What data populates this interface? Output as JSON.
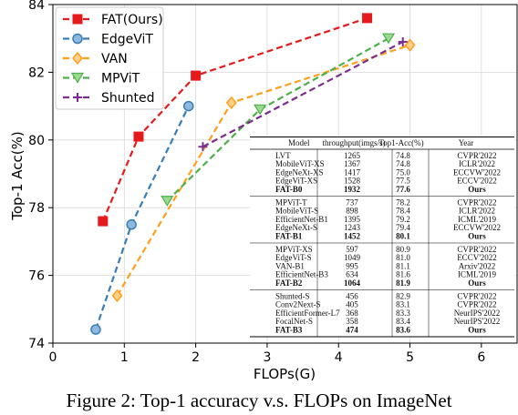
{
  "chart_data": {
    "type": "line",
    "xlabel": "FLOPs(G)",
    "ylabel": "Top-1 Acc(%)",
    "xlim": [
      0,
      6.5
    ],
    "ylim": [
      74,
      84
    ],
    "xticks": [
      "0",
      "1",
      "2",
      "3",
      "4",
      "5",
      "6"
    ],
    "yticks": [
      "74",
      "76",
      "78",
      "80",
      "82",
      "84"
    ],
    "grid": true,
    "legend_position": "top-left",
    "series": [
      {
        "name": "FAT(Ours)",
        "color": "#e41a1c",
        "marker": "square",
        "points": [
          [
            0.7,
            77.6
          ],
          [
            1.2,
            80.1
          ],
          [
            2.0,
            81.9
          ],
          [
            4.4,
            83.6
          ]
        ]
      },
      {
        "name": "EdgeViT",
        "color": "#377eb8",
        "marker": "circle",
        "points": [
          [
            0.6,
            74.4
          ],
          [
            1.1,
            77.5
          ],
          [
            1.9,
            81.0
          ]
        ]
      },
      {
        "name": "VAN",
        "color": "#ff9f1c",
        "marker": "diamond",
        "points": [
          [
            0.9,
            75.4
          ],
          [
            2.5,
            81.1
          ],
          [
            5.0,
            82.8
          ]
        ]
      },
      {
        "name": "MPViT",
        "color": "#4daf4a",
        "marker": "triangle-down",
        "points": [
          [
            1.6,
            78.2
          ],
          [
            2.9,
            80.9
          ],
          [
            4.7,
            83.0
          ]
        ]
      },
      {
        "name": "Shunted",
        "color": "#7b2d8e",
        "marker": "plus",
        "points": [
          [
            2.1,
            79.8
          ],
          [
            4.9,
            82.9
          ]
        ]
      }
    ],
    "table": {
      "headers": [
        "Model",
        "throughput(imgs/s)",
        "Top1-Acc(%)",
        "Year"
      ],
      "groups": [
        [
          [
            "LVT",
            "1265",
            "74.8",
            "CVPR'2022",
            false
          ],
          [
            "MobileViT-XS",
            "1367",
            "74.8",
            "ICLR'2022",
            false
          ],
          [
            "EdgeNeXt-XS",
            "1417",
            "75.0",
            "ECCVW'2022",
            false
          ],
          [
            "EdgeViT-XS",
            "1528",
            "77.5",
            "ECCV'2022",
            false
          ],
          [
            "FAT-B0",
            "1932",
            "77.6",
            "Ours",
            true
          ]
        ],
        [
          [
            "MPViT-T",
            "737",
            "78.2",
            "CVPR'2022",
            false
          ],
          [
            "MobileViT-S",
            "898",
            "78.4",
            "ICLR'2022",
            false
          ],
          [
            "EfficientNet-B1",
            "1395",
            "79.2",
            "ICML'2019",
            false
          ],
          [
            "EdgeNeXt-S",
            "1243",
            "79.4",
            "ECCVW'2022",
            false
          ],
          [
            "FAT-B1",
            "1452",
            "80.1",
            "Ours",
            true
          ]
        ],
        [
          [
            "MPViT-XS",
            "597",
            "80.9",
            "CVPR'2022",
            false
          ],
          [
            "EdgeViT-S",
            "1049",
            "81.0",
            "ECCV'2022",
            false
          ],
          [
            "VAN-B1",
            "995",
            "81.1",
            "Arxiv'2022",
            false
          ],
          [
            "EfficientNet-B3",
            "634",
            "81.6",
            "ICML'2019",
            false
          ],
          [
            "FAT-B2",
            "1064",
            "81.9",
            "Ours",
            true
          ]
        ],
        [
          [
            "Shunted-S",
            "456",
            "82.9",
            "CVPR'2022",
            false
          ],
          [
            "Conv2Next-S",
            "405",
            "83.1",
            "CVPR'2022",
            false
          ],
          [
            "EfficientFormer-L7",
            "368",
            "83.3",
            "NeurIPS'2022",
            false
          ],
          [
            "FocalNet-S",
            "358",
            "83.4",
            "NeurIPS'2022",
            false
          ],
          [
            "FAT-B3",
            "474",
            "83.6",
            "Ours",
            true
          ]
        ]
      ]
    }
  },
  "caption": "Figure 2: Top-1 accuracy v.s. FLOPs on ImageNet"
}
